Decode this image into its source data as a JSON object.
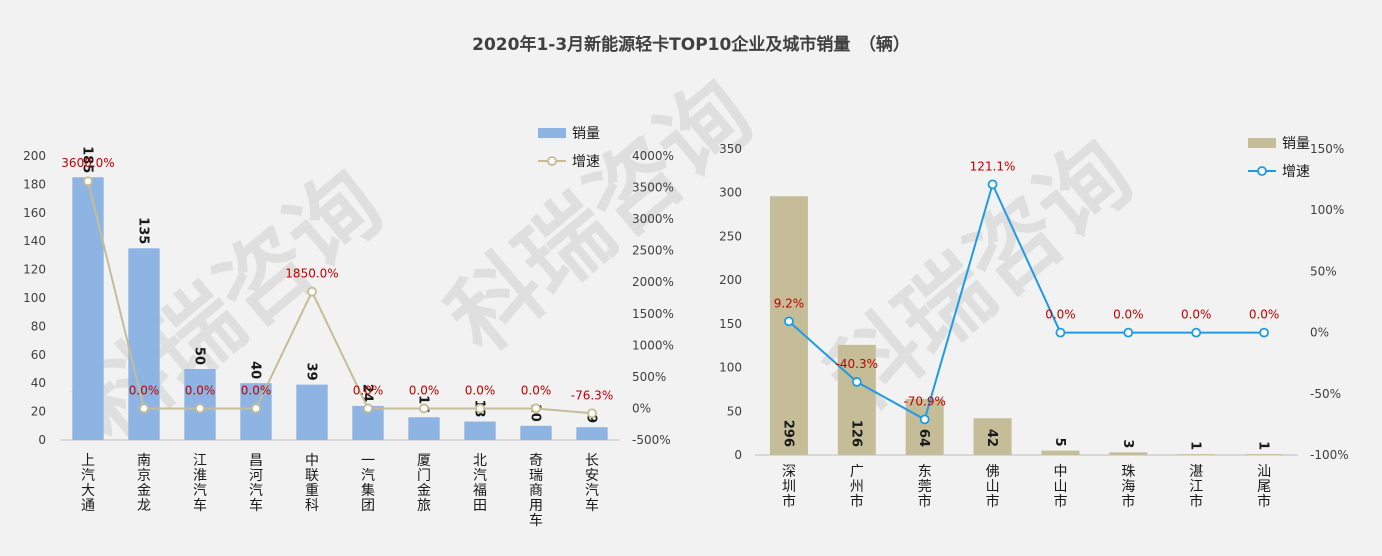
{
  "title": "2020年1-3月新能源轻卡TOP10企业及城市销量　（辆）",
  "watermark": "科瑞咨询",
  "chart_data": [
    {
      "type": "bar+line",
      "categories": [
        "上汽大通",
        "南京金龙",
        "江淮汽车",
        "昌河汽车",
        "中联重科",
        "一汽集团",
        "厦门金旅",
        "北汽福田",
        "奇瑞商用车",
        "长安汽车"
      ],
      "series": [
        {
          "name": "销量",
          "type": "bar",
          "axis": "left",
          "color": "#8eb4e3",
          "values": [
            185,
            135,
            50,
            40,
            39,
            24,
            16,
            13,
            10,
            9
          ]
        },
        {
          "name": "增速",
          "type": "line",
          "axis": "right",
          "color": "#c4bd97",
          "values": [
            3600.0,
            0.0,
            0.0,
            0.0,
            1850.0,
            0.0,
            0.0,
            0.0,
            0.0,
            -76.3
          ],
          "labels": [
            "3600.0%",
            "0.0%",
            "0.0%",
            "0.0%",
            "1850.0%",
            "0.0%",
            "0.0%",
            "0.0%",
            "0.0%",
            "-76.3%"
          ]
        }
      ],
      "yleft": {
        "min": 0,
        "max": 200,
        "step": 20
      },
      "yright": {
        "min": -500,
        "max": 4000,
        "step": 500,
        "unit": "%"
      },
      "legend_position": "top-right"
    },
    {
      "type": "bar+line",
      "categories": [
        "深圳市",
        "广州市",
        "东莞市",
        "佛山市",
        "中山市",
        "珠海市",
        "湛江市",
        "汕尾市"
      ],
      "series": [
        {
          "name": "销量",
          "type": "bar",
          "axis": "left",
          "color": "#c4bd97",
          "values": [
            296,
            126,
            64,
            42,
            5,
            3,
            1,
            1
          ]
        },
        {
          "name": "增速",
          "type": "line",
          "axis": "right",
          "color": "#1f9be6",
          "values": [
            9.2,
            -40.3,
            -70.9,
            121.1,
            0.0,
            0.0,
            0.0,
            0.0
          ],
          "labels": [
            "9.2%",
            "-40.3%",
            "-70.9%",
            "121.1%",
            "0.0%",
            "0.0%",
            "0.0%",
            "0.0%"
          ]
        }
      ],
      "yleft": {
        "min": 0,
        "max": 350,
        "step": 50
      },
      "yright": {
        "min": -100,
        "max": 150,
        "step": 50,
        "unit": "%"
      },
      "legend_position": "top-right"
    }
  ]
}
